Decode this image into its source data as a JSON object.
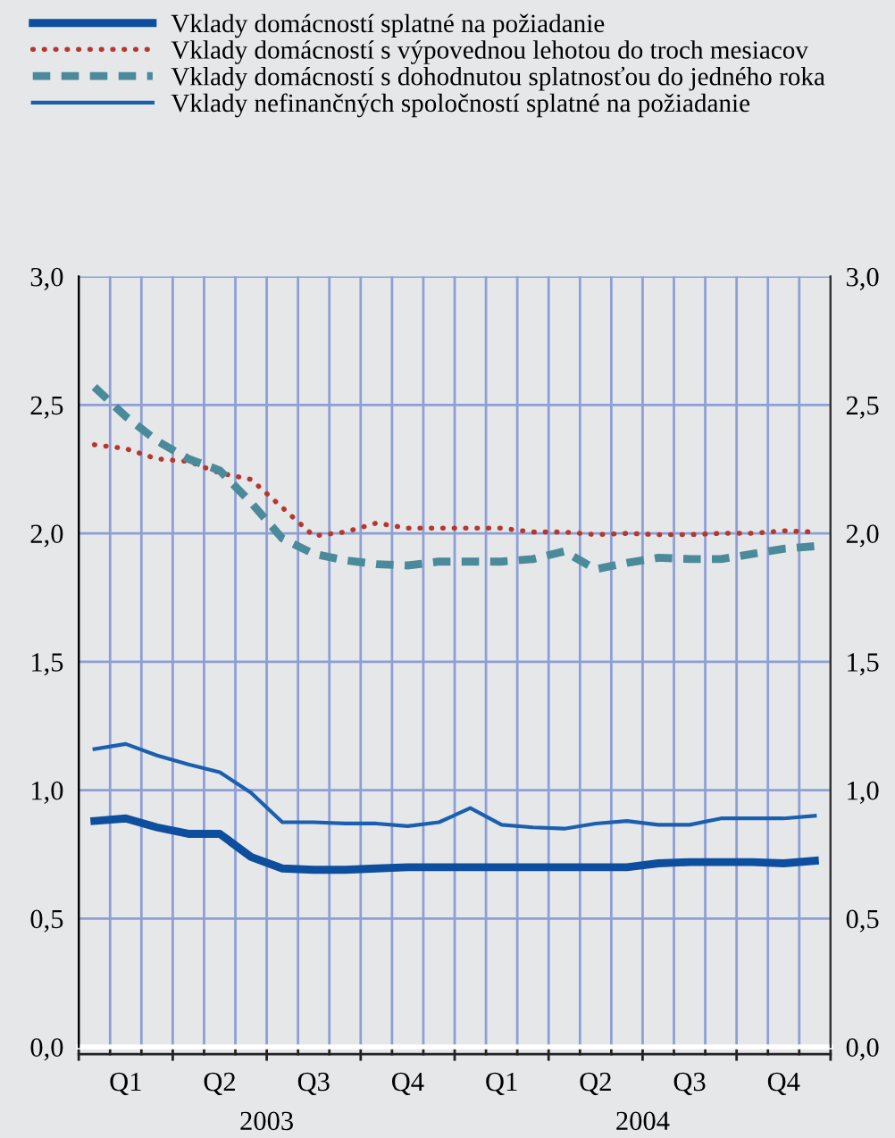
{
  "chart_data": {
    "type": "line",
    "categories": [
      null,
      "Q1",
      null,
      null,
      "Q2",
      null,
      null,
      "Q3",
      null,
      null,
      "Q4",
      null,
      null,
      "Q1",
      null,
      null,
      "Q2",
      null,
      null,
      "Q3",
      null,
      null,
      "Q4",
      null
    ],
    "series": [
      {
        "name": "Vklady domácností splatné na požiadanie",
        "color": "#0d4f9e",
        "line_style": "solid",
        "values": [
          0.88,
          0.89,
          0.855,
          0.83,
          0.83,
          0.74,
          0.695,
          0.69,
          0.69,
          0.695,
          0.7,
          0.7,
          0.7,
          0.7,
          0.7,
          0.7,
          0.7,
          0.7,
          0.715,
          0.72,
          0.72,
          0.72,
          0.715,
          0.725
        ]
      },
      {
        "name": "Vklady domácností s výpovednou lehotou do troch mesiacov",
        "color": "#b5382f",
        "line_style": "dotted",
        "values": [
          2.345,
          2.33,
          2.29,
          2.28,
          2.235,
          2.21,
          2.1,
          1.99,
          2.005,
          2.04,
          2.02,
          2.02,
          2.02,
          2.02,
          2.005,
          2.005,
          1.995,
          2.0,
          1.995,
          1.995,
          2.0,
          2.0,
          2.01,
          2.005
        ]
      },
      {
        "name": "Vklady domácností s dohodnutou splatnosťou do jedného roka",
        "color": "#4a8a9a",
        "line_style": "dashed",
        "values": [
          2.57,
          2.455,
          2.36,
          2.29,
          2.245,
          2.12,
          1.98,
          1.92,
          1.895,
          1.88,
          1.875,
          1.89,
          1.89,
          1.89,
          1.9,
          1.93,
          1.86,
          1.885,
          1.905,
          1.9,
          1.9,
          1.92,
          1.94,
          1.95
        ]
      },
      {
        "name": "Vklady nefinančných spoločností splatné na požiadanie",
        "color": "#1a5fb0",
        "line_style": "solid",
        "values": [
          1.16,
          1.18,
          1.135,
          1.1,
          1.07,
          0.99,
          0.875,
          0.875,
          0.87,
          0.87,
          0.86,
          0.875,
          0.93,
          0.865,
          0.855,
          0.85,
          0.87,
          0.88,
          0.865,
          0.865,
          0.89,
          0.89,
          0.89,
          0.9
        ]
      }
    ],
    "ylim": [
      0,
      3.0
    ],
    "yticks": [
      {
        "value": 0,
        "label": "0,0"
      },
      {
        "value": 0.5,
        "label": "0,5"
      },
      {
        "value": 1.0,
        "label": "1,0"
      },
      {
        "value": 1.5,
        "label": "1,5"
      },
      {
        "value": 2.0,
        "label": "2,0"
      },
      {
        "value": 2.5,
        "label": "2,5"
      },
      {
        "value": 3.0,
        "label": "3,0"
      }
    ],
    "y2lim": [
      0,
      3.0
    ],
    "y2ticks": [
      {
        "value": 0,
        "label": "0,0"
      },
      {
        "value": 0.5,
        "label": "0,5"
      },
      {
        "value": 1.0,
        "label": "1,0"
      },
      {
        "value": 1.5,
        "label": "1,5"
      },
      {
        "value": 2.0,
        "label": "2,0"
      },
      {
        "value": 2.5,
        "label": "2,5"
      },
      {
        "value": 3.0,
        "label": "3,0"
      }
    ],
    "annotations": [
      "2003",
      "2004"
    ],
    "grid": true,
    "legend": "top",
    "marker": "none"
  }
}
